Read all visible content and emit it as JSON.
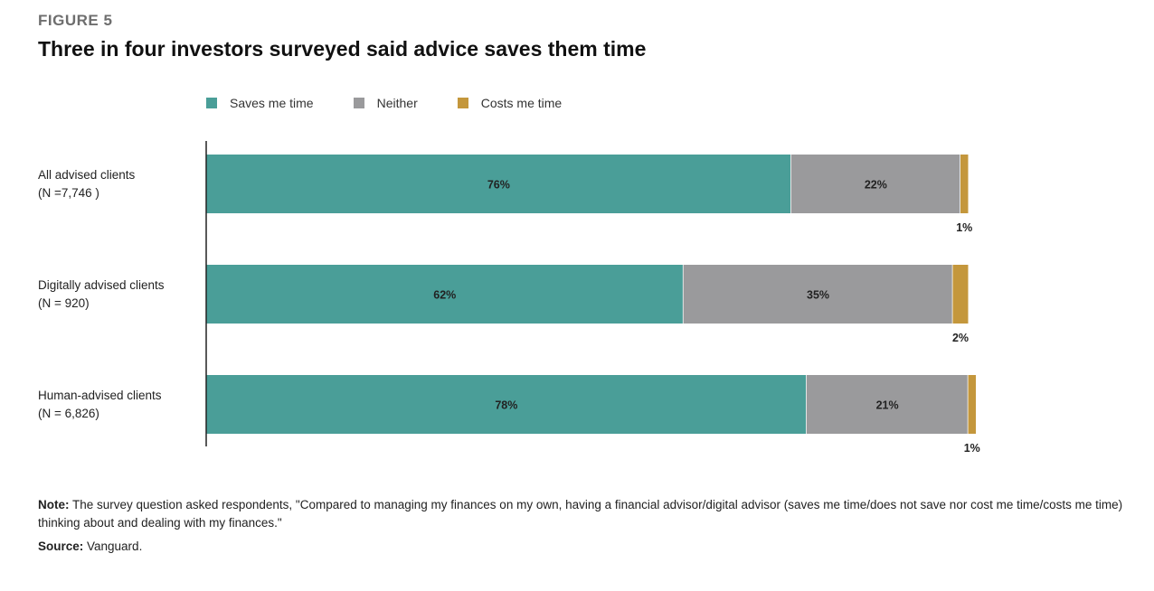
{
  "figure_label": "FIGURE 5",
  "title": "Three in four investors surveyed said advice saves them time",
  "legend": [
    {
      "label": "Saves me time",
      "color": "#4a9e98"
    },
    {
      "label": "Neither",
      "color": "#9a9a9c"
    },
    {
      "label": "Costs me time",
      "color": "#c4973c"
    }
  ],
  "chart_data": {
    "type": "bar",
    "orientation": "horizontal",
    "stacked": true,
    "categories": [
      [
        "All advised clients",
        "(N =7,746 )"
      ],
      [
        "Digitally advised clients",
        "(N = 920)"
      ],
      [
        "Human-advised clients",
        "(N = 6,826)"
      ]
    ],
    "series": [
      {
        "name": "Saves me time",
        "color": "#4a9e98",
        "values": [
          76,
          62,
          78
        ],
        "labels": [
          "76%",
          "62%",
          "78%"
        ]
      },
      {
        "name": "Neither",
        "color": "#9a9a9c",
        "values": [
          22,
          35,
          21
        ],
        "labels": [
          "22%",
          "35%",
          "21%"
        ]
      },
      {
        "name": "Costs me time",
        "color": "#c4973c",
        "values": [
          1,
          2,
          1
        ],
        "labels": [
          "1%",
          "2%",
          "1%"
        ]
      }
    ],
    "value_unit": "%",
    "xlim": [
      0,
      100
    ],
    "grid": false,
    "legend_position": "top"
  },
  "note_label": "Note:",
  "note_text": " The survey question asked respondents, \"Compared to managing my finances on my own, having a financial advisor/digital advisor (saves me time/does not save nor cost me time/costs me time) thinking about and dealing with my finances.\"",
  "source_label": "Source:",
  "source_text": " Vanguard."
}
